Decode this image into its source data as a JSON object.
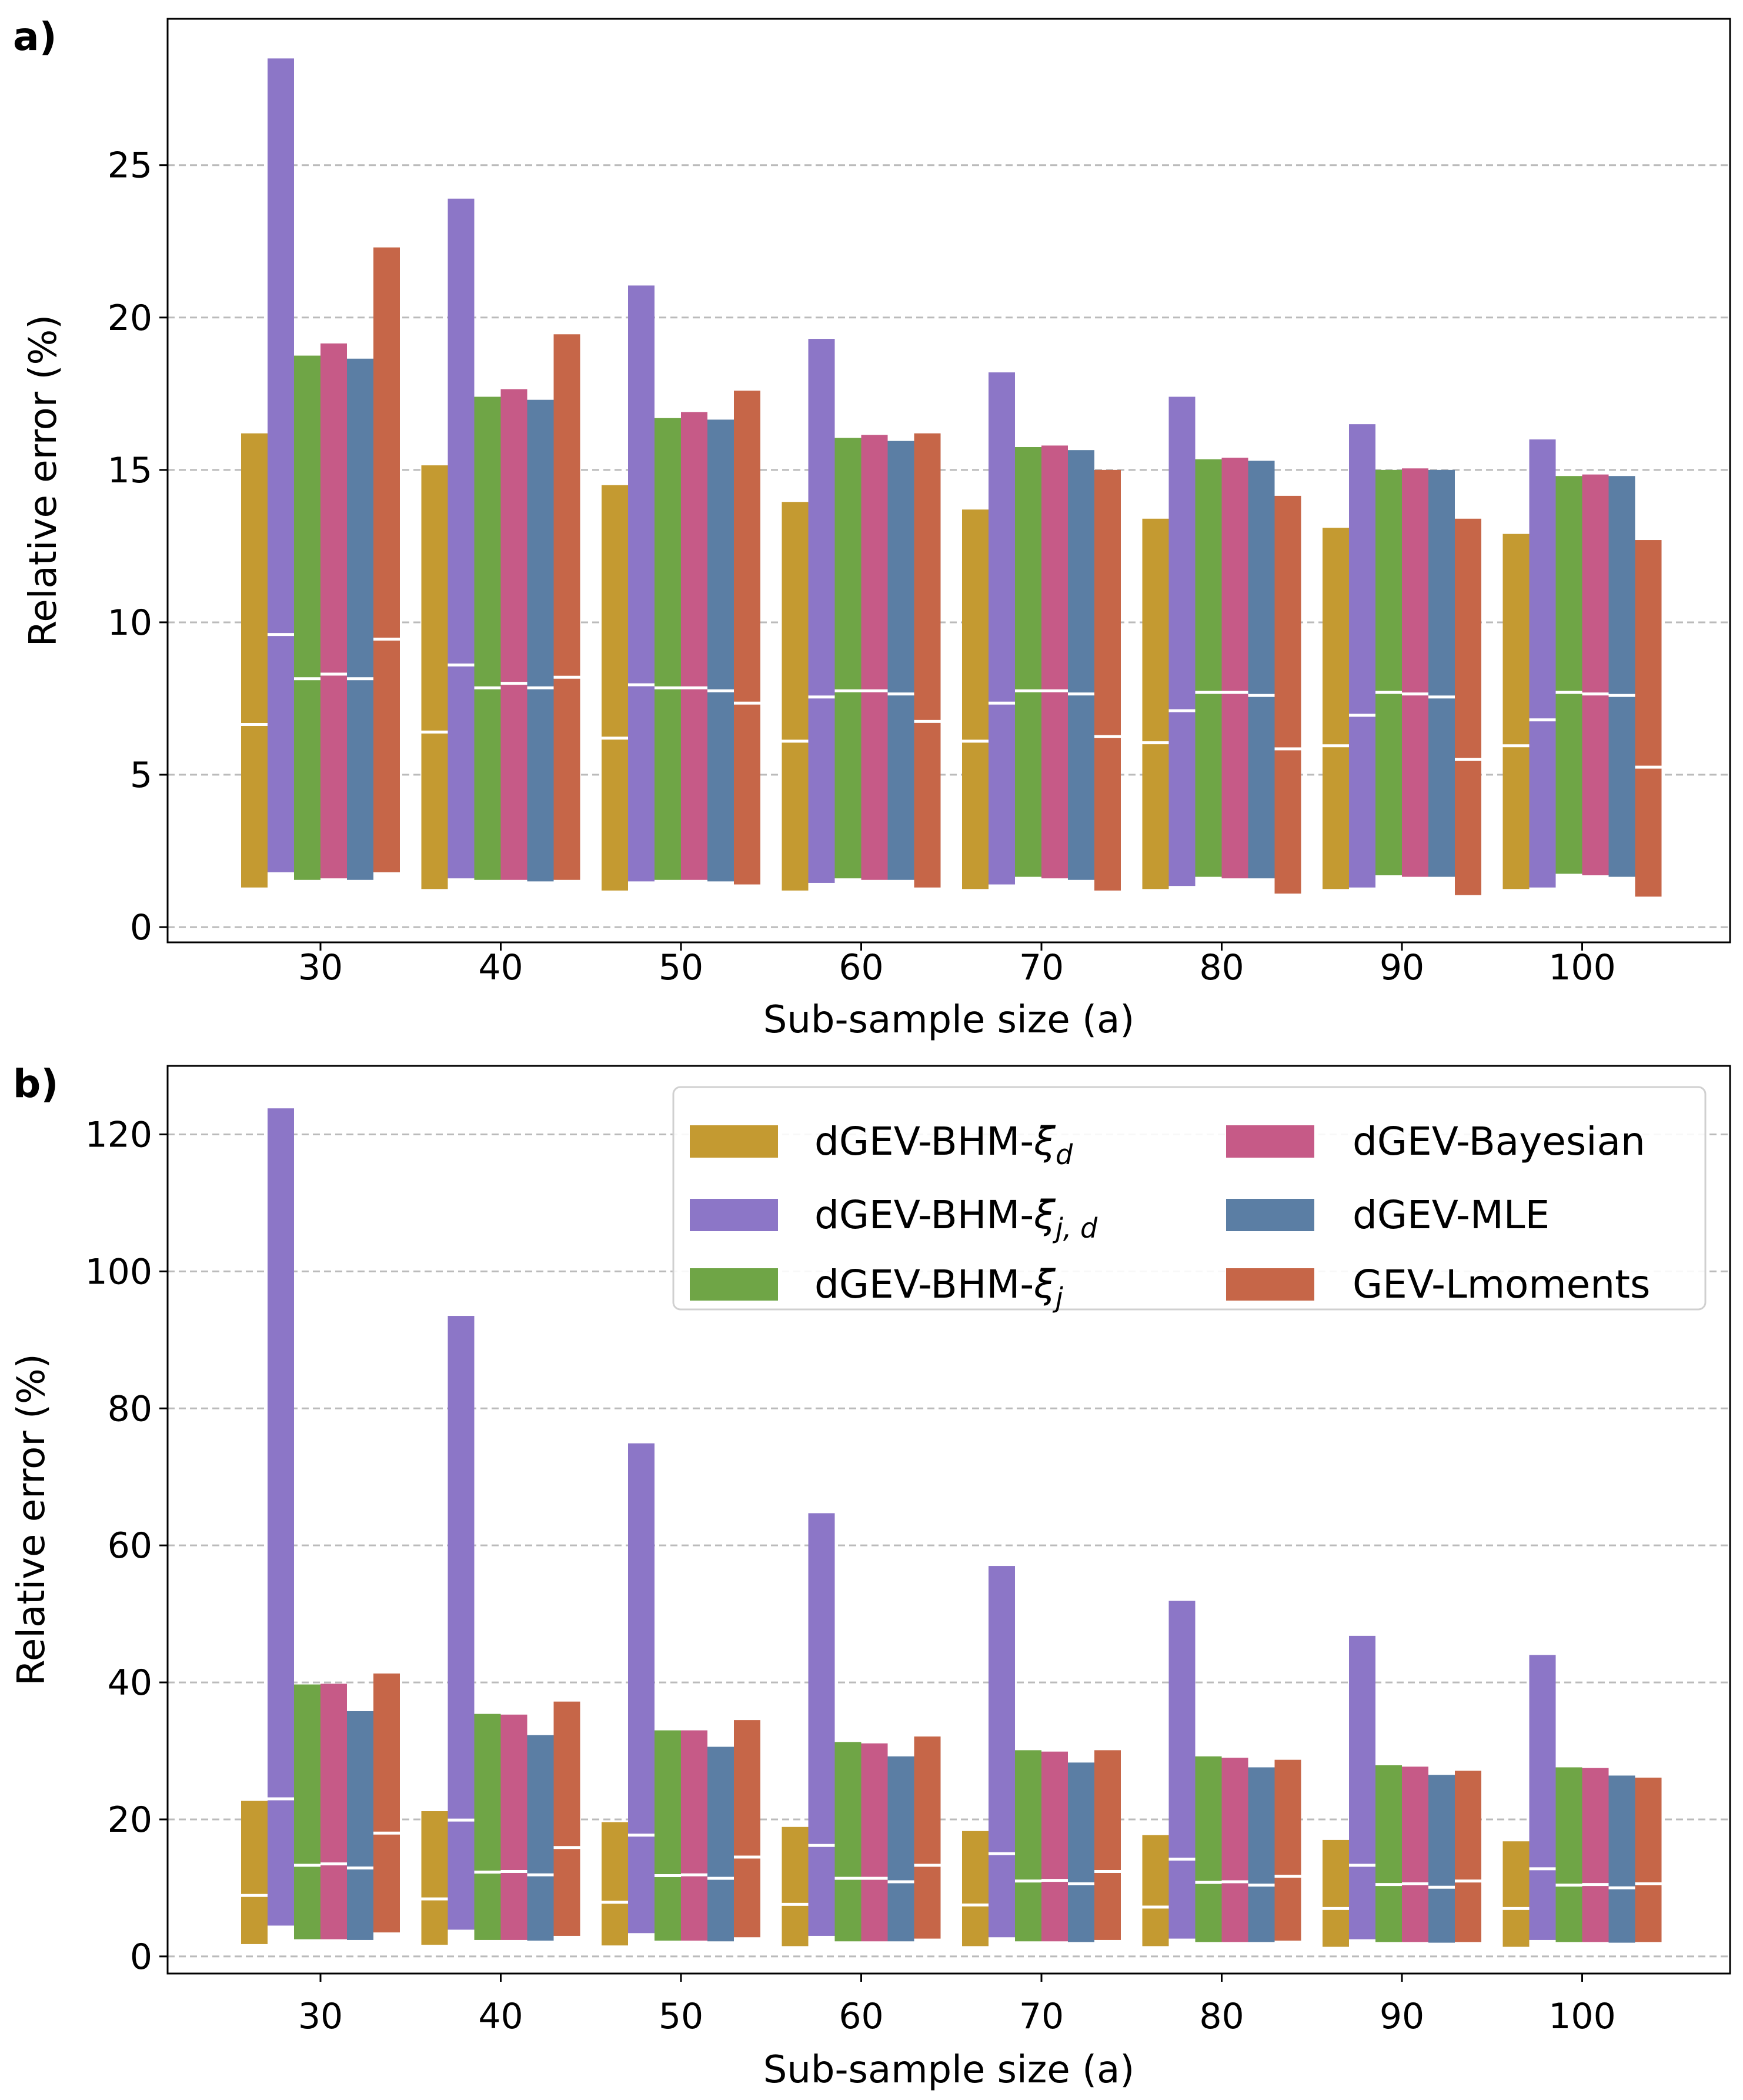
{
  "colors": {
    "dGEV-BHM-xi_d": "#c49a31",
    "dGEV-BHM-xi_jd": "#8c76c7",
    "dGEV-BHM-xi_j": "#6fa546",
    "dGEV-Bayesian": "#c65a87",
    "dGEV-MLE": "#5b7ea4",
    "GEV-Lmoments": "#c66648",
    "grid": "#bbbbbb",
    "median": "#ffffff"
  },
  "legend": {
    "entries": [
      {
        "key": "dGEV-BHM-xi_d",
        "base": "dGEV-BHM-",
        "sym": "ξ",
        "sub": "d"
      },
      {
        "key": "dGEV-BHM-xi_jd",
        "base": "dGEV-BHM-",
        "sym": "ξ",
        "sub": "j, d"
      },
      {
        "key": "dGEV-BHM-xi_j",
        "base": "dGEV-BHM-",
        "sym": "ξ",
        "sub": "j"
      },
      {
        "key": "dGEV-Bayesian",
        "base": "dGEV-Bayesian",
        "sym": "",
        "sub": ""
      },
      {
        "key": "dGEV-MLE",
        "base": "dGEV-MLE",
        "sym": "",
        "sub": ""
      },
      {
        "key": "GEV-Lmoments",
        "base": "GEV-Lmoments",
        "sym": "",
        "sub": ""
      }
    ],
    "placement": "top-right of panel b"
  },
  "chart_data": [
    {
      "type": "bar",
      "panel_label": "a)",
      "title": "",
      "xlabel": "Sub-sample size (a)",
      "ylabel": "Relative error (%)",
      "ylim": [
        -0.5,
        29.8
      ],
      "yticks": [
        0,
        5,
        10,
        15,
        20,
        25
      ],
      "grid": "y dashed",
      "categories": [
        "30",
        "40",
        "50",
        "60",
        "70",
        "80",
        "90",
        "100"
      ],
      "bar_encoding": "floating range low-high with white median line",
      "series": [
        {
          "name": "dGEV-BHM-ξd",
          "key": "dGEV-BHM-xi_d",
          "low": [
            1.3,
            1.25,
            1.2,
            1.2,
            1.25,
            1.25,
            1.25,
            1.25
          ],
          "median": [
            6.65,
            6.4,
            6.2,
            6.1,
            6.1,
            6.05,
            5.95,
            5.95
          ],
          "high": [
            16.2,
            15.15,
            14.5,
            13.95,
            13.7,
            13.4,
            13.1,
            12.9
          ]
        },
        {
          "name": "dGEV-BHM-ξj,d",
          "key": "dGEV-BHM-xi_jd",
          "low": [
            1.8,
            1.6,
            1.5,
            1.45,
            1.4,
            1.35,
            1.3,
            1.3
          ],
          "median": [
            9.6,
            8.6,
            7.95,
            7.55,
            7.35,
            7.1,
            6.95,
            6.8
          ],
          "high": [
            28.5,
            23.9,
            21.05,
            19.3,
            18.2,
            17.4,
            16.5,
            16.0
          ]
        },
        {
          "name": "dGEV-BHM-ξj",
          "key": "dGEV-BHM-xi_j",
          "low": [
            1.55,
            1.55,
            1.55,
            1.6,
            1.65,
            1.65,
            1.7,
            1.75
          ],
          "median": [
            8.15,
            7.85,
            7.85,
            7.75,
            7.75,
            7.7,
            7.7,
            7.7
          ],
          "high": [
            18.75,
            17.4,
            16.7,
            16.05,
            15.75,
            15.35,
            15.0,
            14.8
          ]
        },
        {
          "name": "dGEV-Bayesian",
          "key": "dGEV-Bayesian",
          "low": [
            1.6,
            1.55,
            1.55,
            1.55,
            1.6,
            1.6,
            1.65,
            1.7
          ],
          "median": [
            8.3,
            8.0,
            7.85,
            7.75,
            7.75,
            7.7,
            7.65,
            7.65
          ],
          "high": [
            19.15,
            17.65,
            16.9,
            16.15,
            15.8,
            15.4,
            15.05,
            14.85
          ]
        },
        {
          "name": "dGEV-MLE",
          "key": "dGEV-MLE",
          "low": [
            1.55,
            1.5,
            1.5,
            1.55,
            1.55,
            1.6,
            1.65,
            1.65
          ],
          "median": [
            8.15,
            7.85,
            7.75,
            7.65,
            7.65,
            7.6,
            7.55,
            7.6
          ],
          "high": [
            18.65,
            17.3,
            16.65,
            15.95,
            15.65,
            15.3,
            15.0,
            14.8
          ]
        },
        {
          "name": "GEV-Lmoments",
          "key": "GEV-Lmoments",
          "low": [
            1.8,
            1.55,
            1.4,
            1.3,
            1.2,
            1.1,
            1.05,
            1.0
          ],
          "median": [
            9.45,
            8.2,
            7.35,
            6.75,
            6.25,
            5.85,
            5.5,
            5.25
          ],
          "high": [
            22.3,
            19.45,
            17.6,
            16.2,
            15.0,
            14.15,
            13.4,
            12.7
          ]
        }
      ]
    },
    {
      "type": "bar",
      "panel_label": "b)",
      "title": "",
      "xlabel": "Sub-sample size (a)",
      "ylabel": "Relative error (%)",
      "ylim": [
        -2.5,
        130
      ],
      "yticks": [
        0,
        20,
        40,
        60,
        80,
        100,
        120
      ],
      "grid": "y dashed",
      "categories": [
        "30",
        "40",
        "50",
        "60",
        "70",
        "80",
        "90",
        "100"
      ],
      "bar_encoding": "floating range low-high with white median line",
      "series": [
        {
          "name": "dGEV-BHM-ξd",
          "key": "dGEV-BHM-xi_d",
          "low": [
            1.8,
            1.7,
            1.6,
            1.5,
            1.5,
            1.5,
            1.4,
            1.4
          ],
          "median": [
            8.9,
            8.4,
            7.9,
            7.6,
            7.5,
            7.2,
            7.0,
            7.0
          ],
          "high": [
            22.7,
            21.2,
            19.6,
            18.9,
            18.3,
            17.7,
            17.0,
            16.8
          ]
        },
        {
          "name": "dGEV-BHM-ξj,d",
          "key": "dGEV-BHM-xi_jd",
          "low": [
            4.5,
            3.9,
            3.4,
            3.0,
            2.8,
            2.6,
            2.5,
            2.4
          ],
          "median": [
            23.0,
            19.9,
            17.7,
            16.2,
            15.0,
            14.2,
            13.3,
            12.8
          ],
          "high": [
            123.8,
            93.5,
            74.9,
            64.7,
            57.0,
            51.9,
            46.8,
            44.0
          ]
        },
        {
          "name": "dGEV-BHM-ξj",
          "key": "dGEV-BHM-xi_j",
          "low": [
            2.5,
            2.4,
            2.3,
            2.2,
            2.2,
            2.1,
            2.1,
            2.1
          ],
          "median": [
            13.3,
            12.3,
            11.8,
            11.4,
            11.0,
            10.8,
            10.5,
            10.4
          ],
          "high": [
            39.7,
            35.4,
            33.0,
            31.3,
            30.1,
            29.2,
            27.9,
            27.6
          ]
        },
        {
          "name": "dGEV-Bayesian",
          "key": "dGEV-Bayesian",
          "low": [
            2.5,
            2.4,
            2.3,
            2.2,
            2.2,
            2.1,
            2.1,
            2.1
          ],
          "median": [
            13.5,
            12.4,
            11.9,
            11.4,
            11.1,
            10.9,
            10.6,
            10.5
          ],
          "high": [
            39.8,
            35.3,
            33.0,
            31.1,
            29.9,
            29.0,
            27.7,
            27.5
          ]
        },
        {
          "name": "dGEV-MLE",
          "key": "dGEV-MLE",
          "low": [
            2.4,
            2.3,
            2.2,
            2.2,
            2.1,
            2.1,
            2.0,
            2.0
          ],
          "median": [
            12.9,
            11.9,
            11.4,
            10.9,
            10.6,
            10.4,
            10.1,
            10.0
          ],
          "high": [
            35.8,
            32.3,
            30.6,
            29.2,
            28.3,
            27.6,
            26.5,
            26.4
          ]
        },
        {
          "name": "GEV-Lmoments",
          "key": "GEV-Lmoments",
          "low": [
            3.5,
            3.0,
            2.8,
            2.6,
            2.4,
            2.3,
            2.1,
            2.1
          ],
          "median": [
            18.0,
            15.9,
            14.5,
            13.3,
            12.4,
            11.7,
            11.0,
            10.6
          ],
          "high": [
            41.3,
            37.2,
            34.5,
            32.1,
            30.1,
            28.7,
            27.1,
            26.1
          ]
        }
      ]
    }
  ]
}
